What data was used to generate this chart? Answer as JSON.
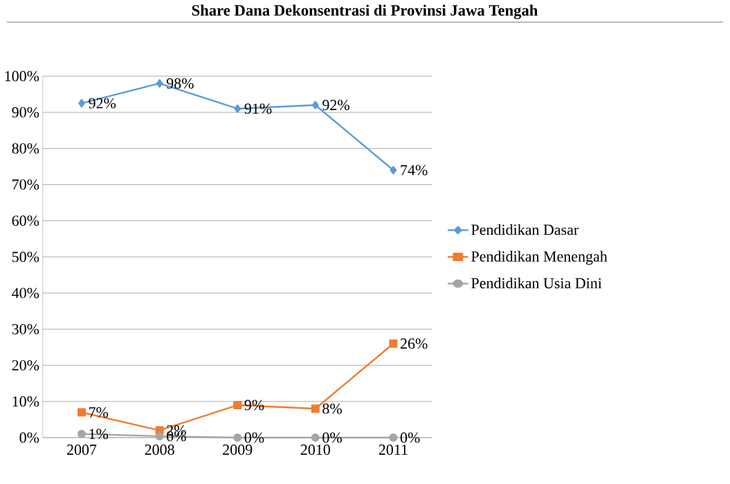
{
  "chart_data": {
    "type": "line",
    "title": "Share Dana Dekonsentrasi di Provinsi Jawa Tengah",
    "categories": [
      "2007",
      "2008",
      "2009",
      "2010",
      "2011"
    ],
    "series": [
      {
        "name": "Pendidikan Dasar",
        "color": "#5b9bd5",
        "marker": "diamond",
        "values": [
          92.5,
          98,
          91,
          92,
          74
        ],
        "value_labels": [
          "92%",
          "98%",
          "91%",
          "92%",
          "74%"
        ]
      },
      {
        "name": "Pendidikan Menengah",
        "color": "#ed7d31",
        "marker": "square",
        "values": [
          7,
          2,
          9,
          8,
          26
        ],
        "value_labels": [
          "7%",
          "2%",
          "9%",
          "8%",
          "26%"
        ]
      },
      {
        "name": "Pendidikan Usia Dini",
        "color": "#a5a5a5",
        "marker": "circle",
        "values": [
          1,
          0.4,
          0,
          0,
          0
        ],
        "value_labels": [
          "1%",
          "0%",
          "0%",
          "0%",
          "0%"
        ]
      }
    ],
    "ylim": [
      0,
      100
    ],
    "yticks": [
      {
        "value": 0,
        "label": "0%"
      },
      {
        "value": 10,
        "label": "10%"
      },
      {
        "value": 20,
        "label": "20%"
      },
      {
        "value": 30,
        "label": "30%"
      },
      {
        "value": 40,
        "label": "40%"
      },
      {
        "value": 50,
        "label": "50%"
      },
      {
        "value": 60,
        "label": "60%"
      },
      {
        "value": 70,
        "label": "70%"
      },
      {
        "value": 80,
        "label": "80%"
      },
      {
        "value": 90,
        "label": "90%"
      },
      {
        "value": 100,
        "label": "100%"
      }
    ],
    "grid": "y",
    "legend": "right"
  }
}
